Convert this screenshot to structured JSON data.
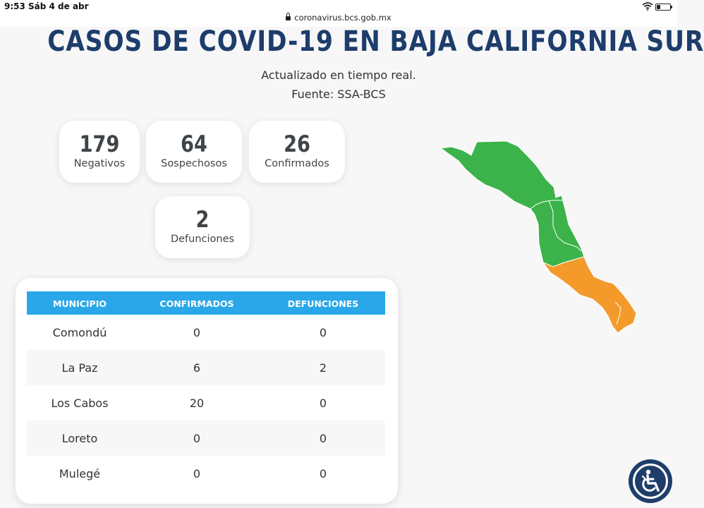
{
  "status_bar": {
    "time": "9:53",
    "date": "Sáb 4 de abr",
    "url": "coronavirus.bcs.gob.mx",
    "icons": [
      "wifi-icon",
      "battery-icon",
      "lock-icon"
    ]
  },
  "header": {
    "title": "CASOS DE COVID-19 EN BAJA CALIFORNIA SUR",
    "subtitle_1": "Actualizado en tiempo real.",
    "subtitle_2": "Fuente: SSA-BCS"
  },
  "stats": {
    "negativos": {
      "value": "179",
      "label": "Negativos"
    },
    "sospechosos": {
      "value": "64",
      "label": "Sospechosos"
    },
    "confirmados": {
      "value": "26",
      "label": "Confirmados"
    },
    "defunciones": {
      "value": "2",
      "label": "Defunciones"
    }
  },
  "table": {
    "headers": [
      "MUNICIPIO",
      "CONFIRMADOS",
      "DEFUNCIONES"
    ],
    "rows": [
      [
        "Comondú",
        "0",
        "0"
      ],
      [
        "La Paz",
        "6",
        "2"
      ],
      [
        "Los Cabos",
        "20",
        "0"
      ],
      [
        "Loreto",
        "0",
        "0"
      ],
      [
        "Mulegé",
        "0",
        "0"
      ]
    ]
  },
  "colors": {
    "title": "#1d3d6b",
    "table_header": "#2aa7e8",
    "map_no_cases": "#3cb34a",
    "map_cases": "#f39a2b",
    "accessibility_button": "#1f3d6a"
  },
  "accessibility_button": {
    "icon": "wheelchair-icon"
  }
}
